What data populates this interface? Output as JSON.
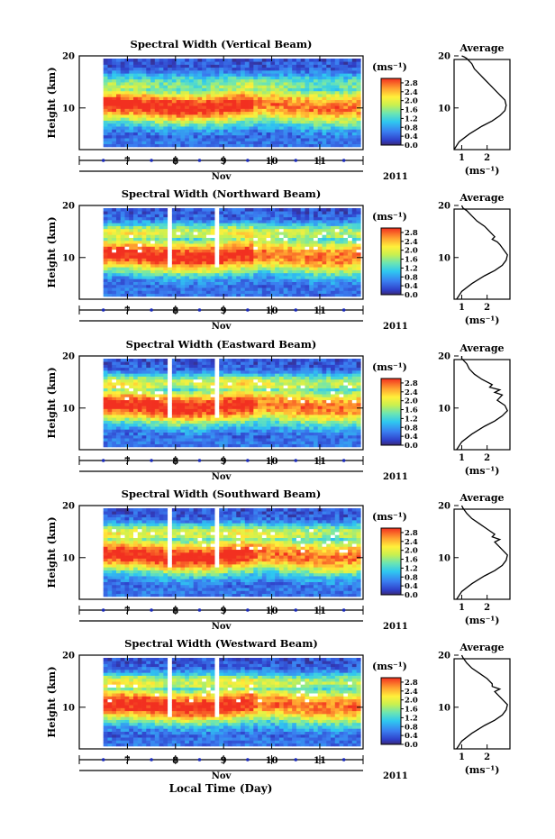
{
  "x_axis_label": "Local Time (Day)",
  "month_label": "Nov",
  "year_label": "2011",
  "colorbar_unit": "(ms⁻¹)",
  "profile_unit": "(ms⁻¹)",
  "profile_title": "Average",
  "chart_data": [
    {
      "type": "heatmap",
      "title": "Spectral Width (Vertical Beam)",
      "ylabel": "Height (km)",
      "xlabel": "Local Time (Day)",
      "x_ticks": [
        "7",
        "8",
        "9",
        "10",
        "11"
      ],
      "y_ticks": [
        "10",
        "20"
      ],
      "xlim": [
        6.0,
        11.9
      ],
      "ylim": [
        2,
        20
      ],
      "colorbar": {
        "ticks": [
          "0.0",
          "0.4",
          "0.8",
          "1.2",
          "1.6",
          "2.0",
          "2.4",
          "2.8"
        ],
        "range": [
          0,
          3.0
        ]
      },
      "data_gaps": [],
      "profile": {
        "title": "Average",
        "x_ticks": [
          "1",
          "2"
        ],
        "xlim": [
          0.7,
          2.9
        ],
        "ylim": [
          2,
          20
        ],
        "y_ticks": [
          "10",
          "20"
        ],
        "x": [
          0.7,
          0.9,
          1.3,
          1.8,
          2.2,
          2.5,
          2.7,
          2.75,
          2.7,
          2.5,
          2.3,
          2.1,
          1.9,
          1.7,
          1.5,
          1.4,
          1.3,
          1.2,
          1.1,
          1.0
        ],
        "y": [
          2,
          3.5,
          5,
          6.5,
          7.5,
          8.5,
          9.5,
          10.5,
          11.5,
          12.5,
          13.5,
          14.5,
          15.5,
          16.5,
          17.5,
          18.5,
          19,
          19.5,
          19.8,
          20
        ]
      }
    },
    {
      "type": "heatmap",
      "title": "Spectral Width (Northward Beam)",
      "ylabel": "Height (km)",
      "xlabel": "Local Time (Day)",
      "x_ticks": [
        "7",
        "8",
        "9",
        "10",
        "11"
      ],
      "y_ticks": [
        "10",
        "20"
      ],
      "xlim": [
        6.0,
        11.9
      ],
      "ylim": [
        2,
        20
      ],
      "colorbar": {
        "ticks": [
          "0.0",
          "0.4",
          "0.8",
          "1.2",
          "1.6",
          "2.0",
          "2.4",
          "2.8"
        ],
        "range": [
          0,
          3.0
        ]
      },
      "data_gaps": [
        [
          7.85,
          7.95
        ],
        [
          8.85,
          8.95
        ]
      ],
      "profile": {
        "title": "Average",
        "x_ticks": [
          "1",
          "2"
        ],
        "xlim": [
          0.7,
          2.9
        ],
        "ylim": [
          2,
          20
        ],
        "y_ticks": [
          "10",
          "20"
        ],
        "x": [
          0.8,
          1.0,
          1.4,
          1.9,
          2.3,
          2.6,
          2.75,
          2.8,
          2.65,
          2.5,
          2.4,
          2.2,
          2.3,
          2.1,
          1.9,
          1.6,
          1.4,
          1.2,
          1.05,
          1.0
        ],
        "y": [
          2,
          3.5,
          5,
          6.5,
          7.5,
          8.5,
          9.5,
          10.5,
          11.5,
          12.5,
          13,
          13.5,
          14,
          15,
          16,
          17,
          18,
          19,
          19.5,
          20
        ]
      }
    },
    {
      "type": "heatmap",
      "title": "Spectral Width (Eastward Beam)",
      "ylabel": "Height (km)",
      "xlabel": "Local Time (Day)",
      "x_ticks": [
        "7",
        "8",
        "9",
        "10",
        "11"
      ],
      "y_ticks": [
        "10",
        "20"
      ],
      "xlim": [
        6.0,
        11.9
      ],
      "ylim": [
        2,
        20
      ],
      "colorbar": {
        "ticks": [
          "0.0",
          "0.4",
          "0.8",
          "1.2",
          "1.6",
          "2.0",
          "2.4",
          "2.8"
        ],
        "range": [
          0,
          3.0
        ]
      },
      "data_gaps": [
        [
          7.85,
          7.95
        ],
        [
          8.85,
          8.95
        ]
      ],
      "profile": {
        "title": "Average",
        "x_ticks": [
          "1",
          "2"
        ],
        "xlim": [
          0.7,
          2.9
        ],
        "ylim": [
          2,
          20
        ],
        "y_ticks": [
          "10",
          "20"
        ],
        "x": [
          0.8,
          1.0,
          1.4,
          1.9,
          2.3,
          2.6,
          2.8,
          2.7,
          2.4,
          2.6,
          2.3,
          2.5,
          2.1,
          2.2,
          1.8,
          1.5,
          1.3,
          1.2,
          1.0,
          1.0
        ],
        "y": [
          2,
          3.5,
          5,
          6.5,
          7.5,
          8.5,
          9.5,
          10.5,
          11.5,
          12.5,
          13,
          13.5,
          14,
          14.5,
          15.5,
          16.5,
          17.5,
          18.5,
          19.5,
          20
        ]
      }
    },
    {
      "type": "heatmap",
      "title": "Spectral Width (Southward Beam)",
      "ylabel": "Height (km)",
      "xlabel": "Local Time (Day)",
      "x_ticks": [
        "7",
        "8",
        "9",
        "10",
        "11"
      ],
      "y_ticks": [
        "10",
        "20"
      ],
      "xlim": [
        6.0,
        11.9
      ],
      "ylim": [
        2,
        20
      ],
      "colorbar": {
        "ticks": [
          "0.0",
          "0.4",
          "0.8",
          "1.2",
          "1.6",
          "2.0",
          "2.4",
          "2.8"
        ],
        "range": [
          0,
          3.0
        ]
      },
      "data_gaps": [
        [
          7.85,
          7.95
        ],
        [
          8.85,
          8.95
        ]
      ],
      "profile": {
        "title": "Average",
        "x_ticks": [
          "1",
          "2"
        ],
        "xlim": [
          0.7,
          2.9
        ],
        "ylim": [
          2,
          20
        ],
        "y_ticks": [
          "10",
          "20"
        ],
        "x": [
          0.8,
          1.0,
          1.4,
          1.9,
          2.3,
          2.6,
          2.75,
          2.8,
          2.6,
          2.4,
          2.3,
          2.5,
          2.2,
          2.3,
          2.0,
          1.7,
          1.4,
          1.2,
          1.05,
          1.0
        ],
        "y": [
          2,
          3.5,
          5,
          6.5,
          7.5,
          8.5,
          9.5,
          10.5,
          11.5,
          12.5,
          13,
          13.5,
          14,
          14.5,
          15.5,
          16.5,
          17.5,
          18.5,
          19.5,
          20
        ]
      }
    },
    {
      "type": "heatmap",
      "title": "Spectral Width (Westward Beam)",
      "ylabel": "Height (km)",
      "xlabel": "Local Time (Day)",
      "x_ticks": [
        "7",
        "8",
        "9",
        "10",
        "11"
      ],
      "y_ticks": [
        "10",
        "20"
      ],
      "xlim": [
        6.0,
        11.9
      ],
      "ylim": [
        2,
        20
      ],
      "colorbar": {
        "ticks": [
          "0.0",
          "0.4",
          "0.8",
          "1.2",
          "1.6",
          "2.0",
          "2.4",
          "2.8"
        ],
        "range": [
          0,
          3.0
        ]
      },
      "data_gaps": [
        [
          7.85,
          7.95
        ],
        [
          8.85,
          8.95
        ]
      ],
      "profile": {
        "title": "Average",
        "x_ticks": [
          "1",
          "2"
        ],
        "xlim": [
          0.7,
          2.9
        ],
        "ylim": [
          2,
          20
        ],
        "y_ticks": [
          "10",
          "20"
        ],
        "x": [
          0.8,
          1.0,
          1.4,
          1.9,
          2.3,
          2.6,
          2.75,
          2.8,
          2.6,
          2.4,
          2.3,
          2.5,
          2.2,
          2.2,
          2.0,
          1.7,
          1.4,
          1.2,
          1.05,
          1.0
        ],
        "y": [
          2,
          3.5,
          5,
          6.5,
          7.5,
          8.5,
          9.5,
          10.5,
          11.5,
          12.5,
          13,
          13.5,
          14,
          14.5,
          15.5,
          16.5,
          17.5,
          18.5,
          19.5,
          20
        ]
      }
    }
  ]
}
